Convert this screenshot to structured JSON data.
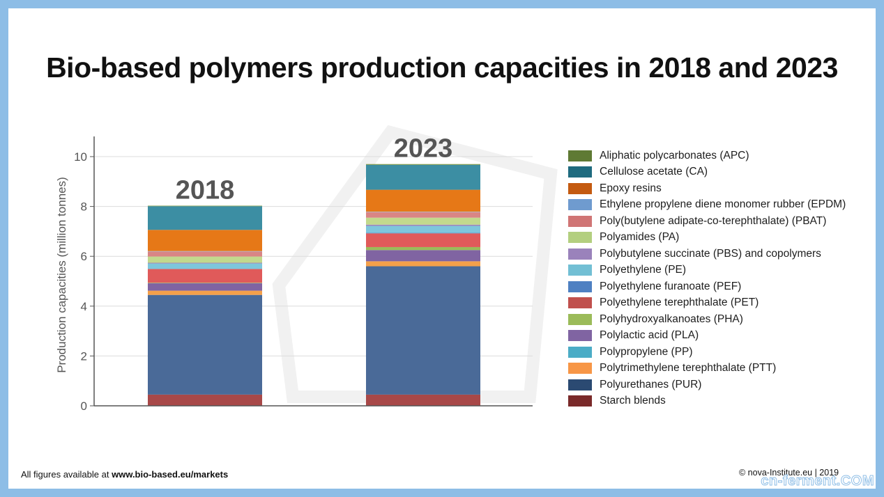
{
  "title": "Bio-based polymers production capacities in 2018 and 2023",
  "footer_prefix": "All figures available at",
  "footer_link": "www.bio-based.eu/markets",
  "credit": "© nova-Institute.eu | 2019",
  "watermark": "cn-ferment.COM",
  "chart_data": {
    "type": "bar",
    "stacked": true,
    "categories": [
      "2018",
      "2023"
    ],
    "ylabel": "Production capacities (million tonnes)",
    "xlabel": "",
    "ylim": [
      0,
      10.8
    ],
    "yticks": [
      0,
      2,
      4,
      6,
      8,
      10
    ],
    "grid": true,
    "legend_position": "right",
    "series": [
      {
        "name": "Starch blends",
        "color": "#a84848",
        "values": [
          0.45,
          0.45
        ]
      },
      {
        "name": "Polyurethanes (PUR)",
        "color": "#4a6a98",
        "values": [
          4.0,
          5.15
        ]
      },
      {
        "name": "Polytrimethylene terephthalate (PTT)",
        "color": "#f4a04a",
        "values": [
          0.17,
          0.2
        ]
      },
      {
        "name": "Polypropylene (PP)",
        "color": "#4bacc6",
        "values": [
          0.0,
          0.0
        ]
      },
      {
        "name": "Polylactic acid (PLA)",
        "color": "#8064a2",
        "values": [
          0.3,
          0.45
        ]
      },
      {
        "name": "Polyhydroxyalkanoates (PHA)",
        "color": "#9bbb59",
        "values": [
          0.02,
          0.12
        ]
      },
      {
        "name": "Polyethylene terephthalate (PET)",
        "color": "#e05a5a",
        "values": [
          0.55,
          0.55
        ]
      },
      {
        "name": "Polyethylene furanoate (PEF)",
        "color": "#4f81bd",
        "values": [
          0.0,
          0.02
        ]
      },
      {
        "name": "Polyethylene (PE)",
        "color": "#7ec6dc",
        "values": [
          0.22,
          0.28
        ]
      },
      {
        "name": "Polybutylene succinate (PBS) and copolymers",
        "color": "#9d86bc",
        "values": [
          0.03,
          0.05
        ]
      },
      {
        "name": "Polyamides (PA)",
        "color": "#c2d98d",
        "values": [
          0.25,
          0.28
        ]
      },
      {
        "name": "Poly(butylene adipate-co-terephthalate) (PBAT)",
        "color": "#d98585",
        "values": [
          0.2,
          0.22
        ]
      },
      {
        "name": "Ethylene propylene diene monomer rubber (EPDM)",
        "color": "#95b3d7",
        "values": [
          0.02,
          0.02
        ]
      },
      {
        "name": "Epoxy resins",
        "color": "#e67817",
        "values": [
          0.85,
          0.88
        ]
      },
      {
        "name": "Cellulose acetate (CA)",
        "color": "#3c8ea3",
        "values": [
          0.95,
          1.0
        ]
      },
      {
        "name": "Aliphatic polycarbonates (APC)",
        "color": "#77933c",
        "values": [
          0.02,
          0.03
        ]
      }
    ],
    "legend": [
      {
        "name": "Aliphatic polycarbonates (APC)",
        "color": "#5f7a34"
      },
      {
        "name": "Cellulose acetate (CA)",
        "color": "#1f6b7f"
      },
      {
        "name": "Epoxy resins",
        "color": "#c45a10"
      },
      {
        "name": "Ethylene propylene diene monomer rubber (EPDM)",
        "color": "#6f9bcf"
      },
      {
        "name": "Poly(butylene adipate-co-terephthalate) (PBAT)",
        "color": "#d07575"
      },
      {
        "name": "Polyamides (PA)",
        "color": "#b3cf7f"
      },
      {
        "name": "Polybutylene succinate (PBS) and copolymers",
        "color": "#9a82bb"
      },
      {
        "name": "Polyethylene (PE)",
        "color": "#72bfd4"
      },
      {
        "name": "Polyethylene furanoate (PEF)",
        "color": "#4e80c2"
      },
      {
        "name": "Polyethylene terephthalate (PET)",
        "color": "#c0504d"
      },
      {
        "name": "Polyhydroxyalkanoates (PHA)",
        "color": "#9bbb59"
      },
      {
        "name": "Polylactic acid (PLA)",
        "color": "#8064a2"
      },
      {
        "name": "Polypropylene (PP)",
        "color": "#4bacc6"
      },
      {
        "name": "Polytrimethylene terephthalate (PTT)",
        "color": "#f79646"
      },
      {
        "name": "Polyurethanes (PUR)",
        "color": "#2b4a72"
      },
      {
        "name": "Starch blends",
        "color": "#7a2a2a"
      }
    ]
  }
}
